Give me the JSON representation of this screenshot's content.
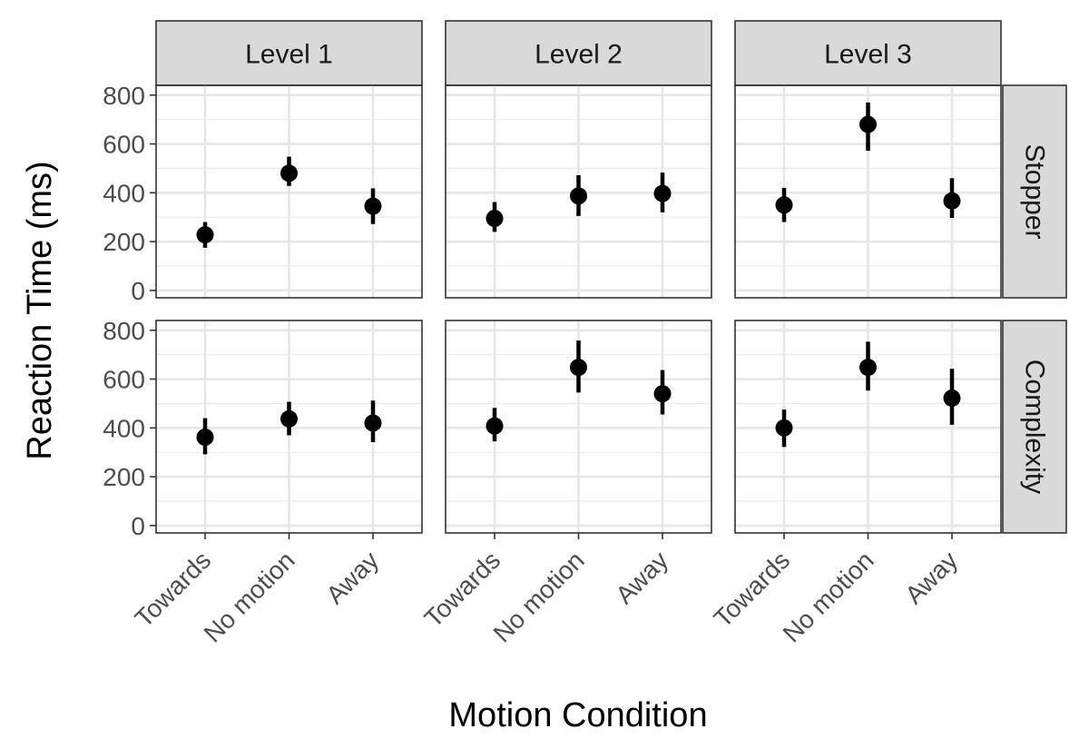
{
  "chart_data": {
    "type": "scatter",
    "xlabel": "Motion Condition",
    "ylabel": "Reaction Time (ms)",
    "categories": [
      "Towards",
      "No motion",
      "Away"
    ],
    "ylim": [
      -30,
      840
    ],
    "yticks": [
      0,
      200,
      400,
      600,
      800
    ],
    "columns": [
      "Level 1",
      "Level 2",
      "Level 3"
    ],
    "rows": [
      "Stopper",
      "Complexity"
    ],
    "grid": true,
    "panels": [
      {
        "column": "Level 1",
        "row": "Stopper",
        "points": [
          {
            "x": "Towards",
            "y": 228,
            "lo": 175,
            "hi": 280
          },
          {
            "x": "No motion",
            "y": 480,
            "lo": 428,
            "hi": 548
          },
          {
            "x": "Away",
            "y": 345,
            "lo": 272,
            "hi": 418
          }
        ]
      },
      {
        "column": "Level 2",
        "row": "Stopper",
        "points": [
          {
            "x": "Towards",
            "y": 295,
            "lo": 240,
            "hi": 362
          },
          {
            "x": "No motion",
            "y": 387,
            "lo": 305,
            "hi": 472
          },
          {
            "x": "Away",
            "y": 397,
            "lo": 320,
            "hi": 483
          }
        ]
      },
      {
        "column": "Level 3",
        "row": "Stopper",
        "points": [
          {
            "x": "Towards",
            "y": 350,
            "lo": 280,
            "hi": 420
          },
          {
            "x": "No motion",
            "y": 680,
            "lo": 572,
            "hi": 770
          },
          {
            "x": "Away",
            "y": 367,
            "lo": 297,
            "hi": 460
          }
        ]
      },
      {
        "column": "Level 1",
        "row": "Complexity",
        "points": [
          {
            "x": "Towards",
            "y": 362,
            "lo": 292,
            "hi": 440
          },
          {
            "x": "No motion",
            "y": 437,
            "lo": 370,
            "hi": 507
          },
          {
            "x": "Away",
            "y": 420,
            "lo": 342,
            "hi": 512
          }
        ]
      },
      {
        "column": "Level 2",
        "row": "Complexity",
        "points": [
          {
            "x": "Towards",
            "y": 408,
            "lo": 345,
            "hi": 482
          },
          {
            "x": "No motion",
            "y": 648,
            "lo": 545,
            "hi": 758
          },
          {
            "x": "Away",
            "y": 540,
            "lo": 455,
            "hi": 637
          }
        ]
      },
      {
        "column": "Level 3",
        "row": "Complexity",
        "points": [
          {
            "x": "Towards",
            "y": 400,
            "lo": 322,
            "hi": 475
          },
          {
            "x": "No motion",
            "y": 648,
            "lo": 553,
            "hi": 753
          },
          {
            "x": "Away",
            "y": 522,
            "lo": 413,
            "hi": 642
          }
        ]
      }
    ]
  }
}
